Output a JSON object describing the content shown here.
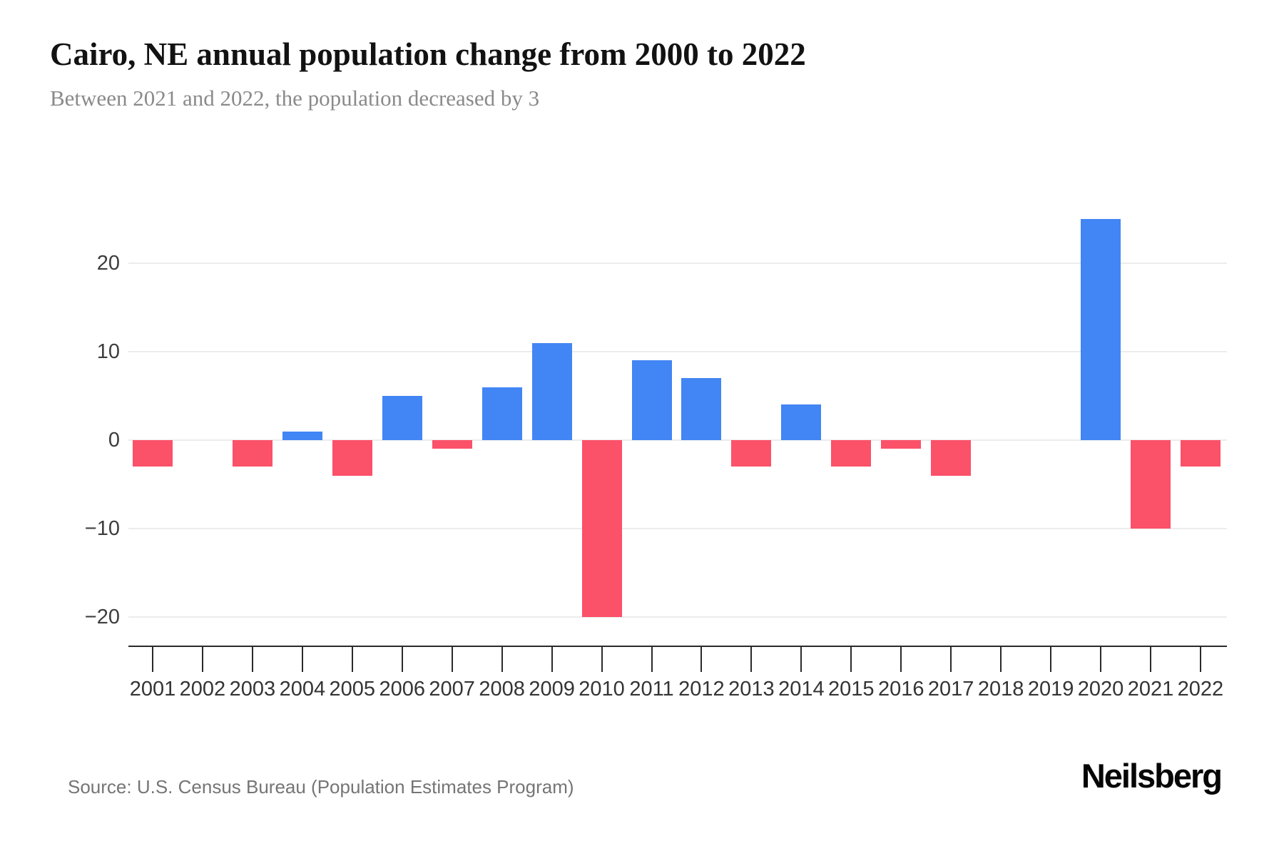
{
  "header": {
    "title": "Cairo, NE annual population change from 2000 to 2022",
    "subtitle": "Between 2021 and 2022, the population decreased by 3"
  },
  "chart_data": {
    "type": "bar",
    "title": "Cairo, NE annual population change from 2000 to 2022",
    "subtitle": "Between 2021 and 2022, the population decreased by 3",
    "categories": [
      "2001",
      "2002",
      "2003",
      "2004",
      "2005",
      "2006",
      "2007",
      "2008",
      "2009",
      "2010",
      "2011",
      "2012",
      "2013",
      "2014",
      "2015",
      "2016",
      "2017",
      "2018",
      "2019",
      "2020",
      "2021",
      "2022"
    ],
    "values": [
      -3,
      0,
      -3,
      1,
      -4,
      5,
      -1,
      6,
      11,
      -20,
      9,
      7,
      -3,
      4,
      -3,
      -1,
      -4,
      0,
      0,
      25,
      -10,
      -3
    ],
    "xlabel": "",
    "ylabel": "",
    "yticks": [
      20,
      10,
      0,
      -10,
      -20
    ],
    "ylim": [
      -20,
      25
    ],
    "grid": "horizontal",
    "legend": "none",
    "positive_color": "#4285f4",
    "negative_color": "#fb5169",
    "gridline_color": "#ececec",
    "axis_color": "#2a2a2a",
    "tick_label_color": "#3d3d3d"
  },
  "footer": {
    "source": "Source: U.S. Census Bureau (Population Estimates Program)",
    "brand": "Neilsberg"
  }
}
